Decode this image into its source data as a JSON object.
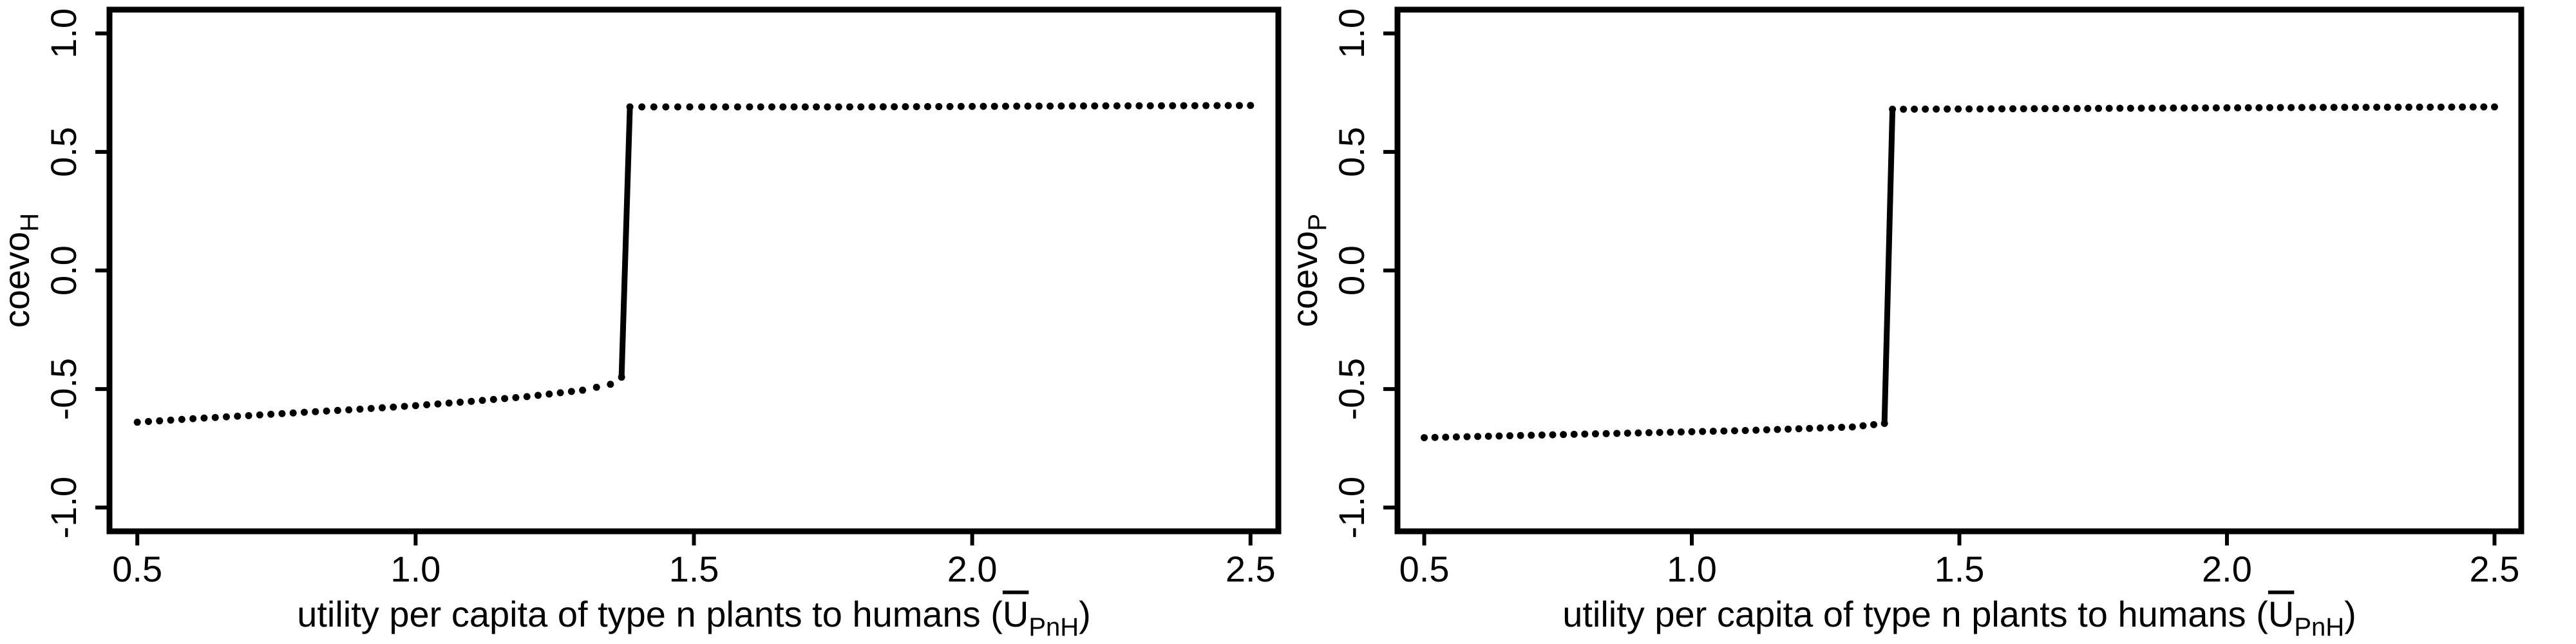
{
  "chart_data": [
    {
      "type": "scatter",
      "xlabel": "utility per capita of type n plants to humans",
      "xlabel_symbol": "U",
      "xlabel_symbol_subscript": "PnH",
      "ylabel": "coevo",
      "ylabel_subscript": "H",
      "xlim": [
        0.45,
        2.55
      ],
      "ylim": [
        -1.1,
        1.1
      ],
      "xticks": [
        0.5,
        1.0,
        1.5,
        2.0,
        2.5
      ],
      "xtick_labels": [
        "0.5",
        "1.0",
        "1.5",
        "2.0",
        "2.5"
      ],
      "yticks": [
        -1.0,
        -0.5,
        0.0,
        0.5,
        1.0
      ],
      "ytick_labels": [
        "-1.0",
        "-0.5",
        "0.0",
        "0.5",
        "1.0"
      ],
      "grid": false,
      "series": [
        {
          "style": "dotted",
          "x": [
            0.5,
            0.6,
            0.7,
            0.8,
            0.9,
            1.0,
            1.1,
            1.2,
            1.3,
            1.35,
            1.37
          ],
          "y": [
            -0.64,
            -0.625,
            -0.612,
            -0.598,
            -0.585,
            -0.57,
            -0.552,
            -0.532,
            -0.505,
            -0.48,
            -0.45
          ]
        },
        {
          "style": "solid",
          "x": [
            1.37,
            1.385
          ],
          "y": [
            -0.45,
            0.69
          ]
        },
        {
          "style": "dotted",
          "x": [
            1.385,
            1.6,
            1.8,
            2.0,
            2.2,
            2.4,
            2.5
          ],
          "y": [
            0.69,
            0.69,
            0.69,
            0.692,
            0.694,
            0.695,
            0.696
          ]
        }
      ]
    },
    {
      "type": "scatter",
      "xlabel": "utility per capita of type n plants to humans",
      "xlabel_symbol": "U",
      "xlabel_symbol_subscript": "PnH",
      "ylabel": "coevo",
      "ylabel_subscript": "P",
      "xlim": [
        0.45,
        2.55
      ],
      "ylim": [
        -1.1,
        1.1
      ],
      "xticks": [
        0.5,
        1.0,
        1.5,
        2.0,
        2.5
      ],
      "xtick_labels": [
        "0.5",
        "1.0",
        "1.5",
        "2.0",
        "2.5"
      ],
      "yticks": [
        -1.0,
        -0.5,
        0.0,
        0.5,
        1.0
      ],
      "ytick_labels": [
        "-1.0",
        "-0.5",
        "0.0",
        "0.5",
        "1.0"
      ],
      "grid": false,
      "series": [
        {
          "style": "dotted",
          "x": [
            0.5,
            0.7,
            0.9,
            1.1,
            1.3,
            1.36
          ],
          "y": [
            -0.705,
            -0.695,
            -0.685,
            -0.675,
            -0.66,
            -0.645
          ]
        },
        {
          "style": "solid",
          "x": [
            1.36,
            1.375
          ],
          "y": [
            -0.645,
            0.68
          ]
        },
        {
          "style": "dotted",
          "x": [
            1.375,
            1.6,
            1.8,
            2.0,
            2.2,
            2.4,
            2.5
          ],
          "y": [
            0.68,
            0.682,
            0.684,
            0.686,
            0.688,
            0.689,
            0.69
          ]
        }
      ]
    }
  ]
}
